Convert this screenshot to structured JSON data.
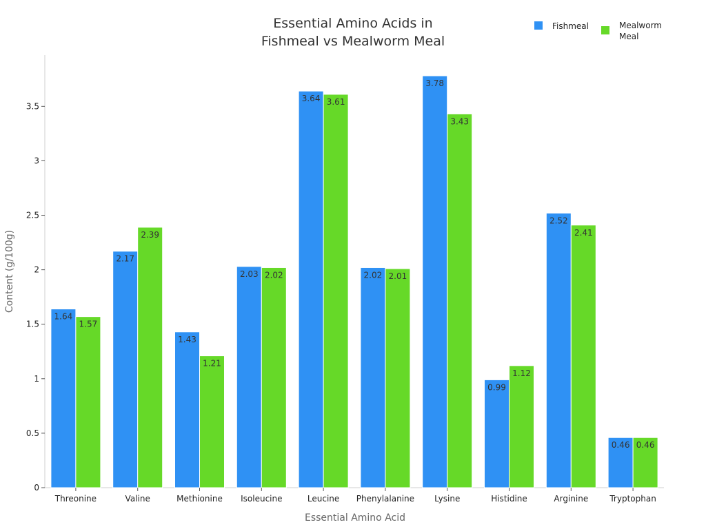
{
  "chart_data": {
    "type": "bar",
    "title_lines": [
      "Essential Amino Acids in",
      "Fishmeal vs Mealworm Meal"
    ],
    "xlabel": "Essential Amino Acid",
    "ylabel": "Content (g/100g)",
    "categories": [
      "Threonine",
      "Valine",
      "Methionine",
      "Isoleucine",
      "Leucine",
      "Phenylalanine",
      "Lysine",
      "Histidine",
      "Arginine",
      "Tryptophan"
    ],
    "series": [
      {
        "name": "Fishmeal",
        "color": "#2f91f4",
        "values": [
          1.64,
          2.17,
          1.43,
          2.03,
          3.64,
          2.02,
          3.78,
          0.99,
          2.52,
          0.46
        ]
      },
      {
        "name_lines": [
          "Mealworm",
          "Meal"
        ],
        "color": "#66d928",
        "values": [
          1.57,
          2.39,
          1.21,
          2.02,
          3.61,
          2.01,
          3.43,
          1.12,
          2.41,
          0.46
        ]
      }
    ],
    "ylim": [
      0,
      3.97
    ],
    "yticks": [
      0,
      0.5,
      1,
      1.5,
      2,
      2.5,
      3,
      3.5
    ],
    "ytick_labels": [
      "0",
      "0.5",
      "1",
      "1.5",
      "2",
      "2.5",
      "3",
      "3.5"
    ],
    "grid": false,
    "legend_position": "top-right",
    "data_labels": true
  }
}
